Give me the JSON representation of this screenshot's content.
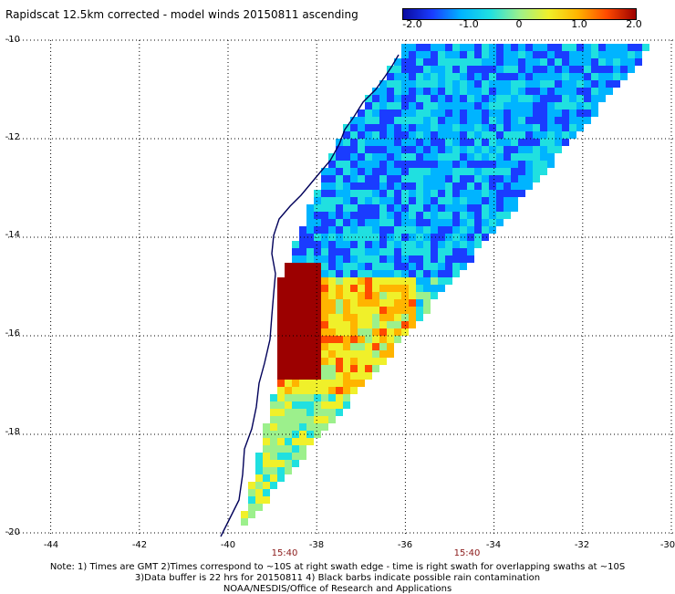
{
  "title": "Rapidscat 12.5km corrected - model winds 20150811 ascending",
  "colorbar": {
    "ticks": [
      "-2.0",
      "-1.0",
      "0",
      "1.0",
      "2.0"
    ],
    "stops": [
      "#0a0aa0",
      "#1a3cff",
      "#00b4ff",
      "#20e0e0",
      "#9cf08c",
      "#f0f02a",
      "#ffb400",
      "#ff4a00",
      "#9c0000"
    ]
  },
  "map": {
    "lat_labels": [
      "-10",
      "-12",
      "-14",
      "-16",
      "-18",
      "-20"
    ],
    "lon_labels": [
      "-44",
      "-42",
      "-40",
      "-38",
      "-36",
      "-34",
      "-32",
      "-30"
    ],
    "grid_color": "#000000",
    "coast_color": "#00005a"
  },
  "swath_times": [
    "15:40",
    "15:40"
  ],
  "notes": [
    "Note: 1) Times are GMT 2)Times correspond to ~10S at right swath edge - time is right swath for overlapping swaths at ~10S",
    "3)Data buffer is 22 hrs for 20150811 4) Black barbs indicate possible rain contamination",
    "NOAA/NESDIS/Office of Research and Applications"
  ]
}
